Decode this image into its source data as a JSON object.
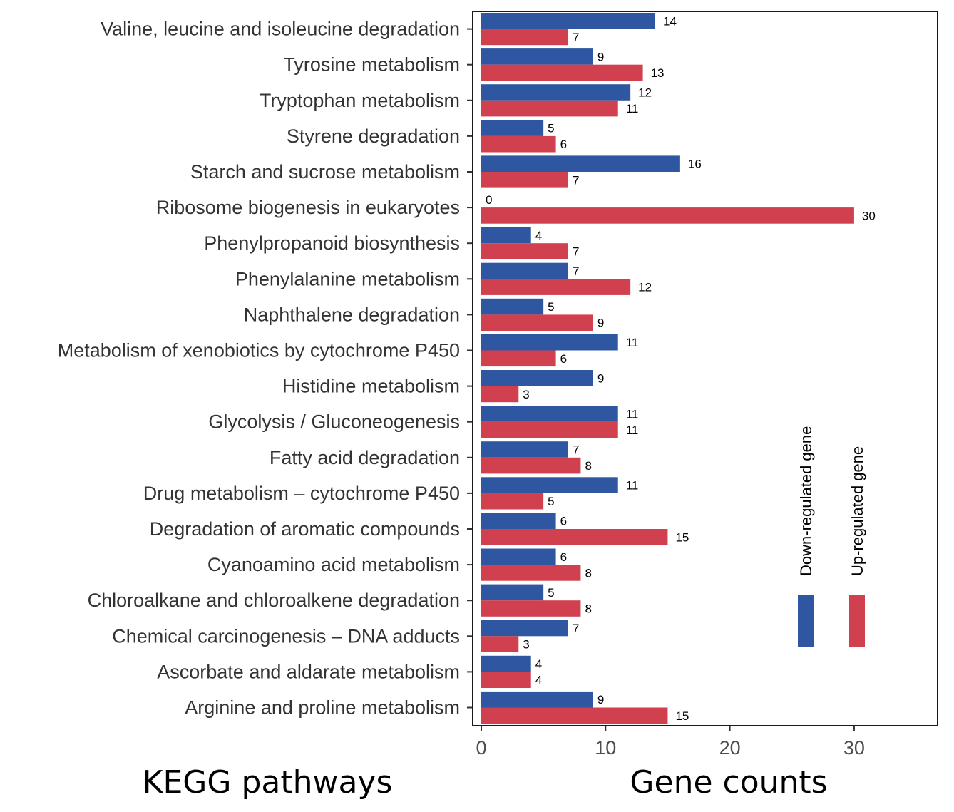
{
  "chart_data": {
    "type": "bar",
    "orientation": "horizontal",
    "xlabel": "Gene counts",
    "ylabel": "KEGG pathways",
    "xlim": [
      0,
      36
    ],
    "xticks": [
      0,
      10,
      20,
      30
    ],
    "grid": false,
    "legend_position": "right",
    "categories": [
      "Valine, leucine and isoleucine degradation",
      "Tyrosine metabolism",
      "Tryptophan metabolism",
      "Styrene degradation",
      "Starch and sucrose metabolism",
      "Ribosome biogenesis in eukaryotes",
      "Phenylpropanoid biosynthesis",
      "Phenylalanine metabolism",
      "Naphthalene degradation",
      "Metabolism of xenobiotics by cytochrome P450",
      "Histidine metabolism",
      "Glycolysis / Gluconeogenesis",
      "Fatty acid degradation",
      "Drug metabolism – cytochrome P450",
      "Degradation of aromatic compounds",
      "Cyanoamino acid metabolism",
      "Chloroalkane and chloroalkene degradation",
      "Chemical carcinogenesis – DNA adducts",
      "Ascorbate and aldarate metabolism",
      "Arginine and proline metabolism"
    ],
    "series": [
      {
        "name": "Down-regulated gene",
        "color": "#2f56a0",
        "values": [
          14,
          9,
          12,
          5,
          16,
          0,
          4,
          7,
          5,
          11,
          9,
          11,
          7,
          11,
          6,
          6,
          5,
          7,
          4,
          9
        ]
      },
      {
        "name": "Up-regulated gene",
        "color": "#d0404f",
        "values": [
          7,
          13,
          11,
          6,
          7,
          30,
          7,
          12,
          9,
          6,
          3,
          11,
          8,
          5,
          15,
          8,
          8,
          3,
          4,
          15
        ]
      }
    ]
  }
}
